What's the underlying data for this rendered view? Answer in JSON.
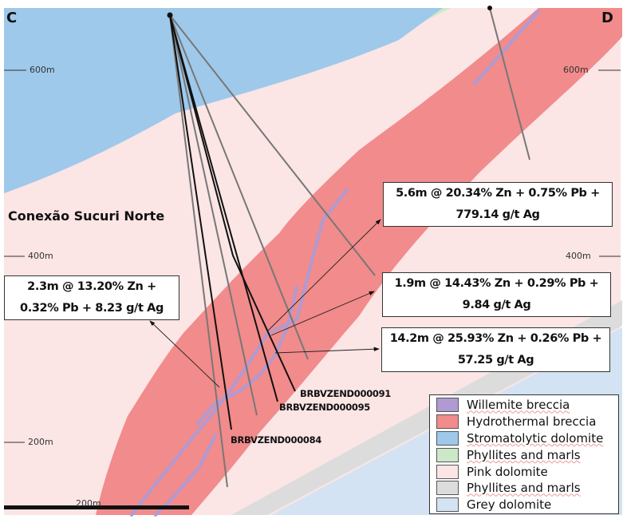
{
  "section": {
    "start_label": "C",
    "end_label": "D",
    "title": "Conexão Sucuri Norte"
  },
  "depth_labels": {
    "d600": "600m",
    "d400": "400m",
    "d200": "200m"
  },
  "scale_bar": {
    "label": "200m"
  },
  "intercepts": [
    {
      "line1": "5.6m @ 20.34% Zn + 0.75% Pb +",
      "line2": "779.14 g/t Ag"
    },
    {
      "line1": "1.9m @ 14.43% Zn + 0.29% Pb +",
      "line2": "9.84 g/t Ag"
    },
    {
      "line1": "14.2m @ 25.93% Zn + 0.26% Pb +",
      "line2": "57.25 g/t Ag"
    },
    {
      "line1": "2.3m @ 13.20% Zn +",
      "line2": "0.32% Pb + 8.23 g/t Ag"
    }
  ],
  "drillholes": [
    "BRBVZEND000091",
    "BRBVZEND000095",
    "BRBVZEND000084"
  ],
  "legend": [
    {
      "label": "Willemite breccia",
      "color": "#b09ad2"
    },
    {
      "label": "Hydrothermal breccia",
      "color": "#f28b8b"
    },
    {
      "label": "Stromatolytic dolomite",
      "color": "#9ec9ea"
    },
    {
      "label": "Phyllites and marls",
      "color": "#cde8c8"
    },
    {
      "label": "Pink dolomite",
      "color": "#fbe5e5"
    },
    {
      "label": "Phyllites and marls",
      "color": "#dcdcdc"
    },
    {
      "label": "Grey dolomite",
      "color": "#d3e3f3"
    }
  ]
}
